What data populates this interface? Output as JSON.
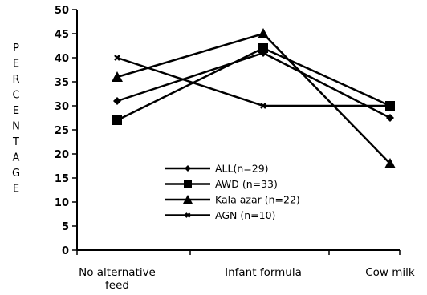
{
  "chart_data": {
    "type": "line",
    "title": "",
    "ylabel": "PERCENTAGE",
    "xlabel": "",
    "categories": [
      "No alternative feed",
      "Infant formula",
      "Cow milk"
    ],
    "ylim": [
      0,
      50
    ],
    "yticks": [
      0,
      5,
      10,
      15,
      20,
      25,
      30,
      35,
      40,
      45,
      50
    ],
    "grid": false,
    "legend_position": "bottom-center",
    "series": [
      {
        "name": "ALL(n=29)",
        "marker": "diamond",
        "values": [
          31,
          41,
          27.5
        ]
      },
      {
        "name": "AWD (n=33)",
        "marker": "square",
        "values": [
          27,
          42,
          30
        ]
      },
      {
        "name": "Kala azar (n=22)",
        "marker": "triangle",
        "values": [
          36,
          45,
          18
        ]
      },
      {
        "name": "AGN (n=10)",
        "marker": "x",
        "values": [
          40,
          30,
          30
        ]
      }
    ],
    "line_color": "#000000"
  }
}
